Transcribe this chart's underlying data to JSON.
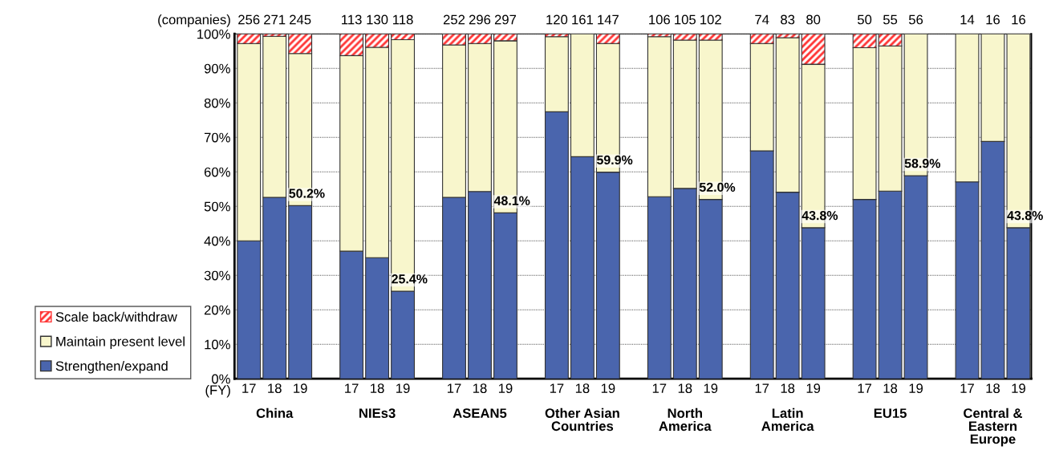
{
  "chart_data": {
    "type": "bar",
    "stacked": true,
    "categories": [
      "17",
      "18",
      "19",
      "17",
      "18",
      "19",
      "17",
      "18",
      "19",
      "17",
      "18",
      "19",
      "17",
      "18",
      "19",
      "17",
      "18",
      "19",
      "17",
      "18",
      "19",
      "17",
      "18",
      "19"
    ],
    "series": [
      {
        "name": "Strengthen/expand",
        "color": "#4a65ad",
        "values": [
          40.0,
          52.6,
          50.2,
          37.0,
          35.1,
          25.4,
          52.6,
          54.3,
          48.1,
          77.4,
          64.4,
          59.9,
          52.8,
          55.2,
          52.0,
          66.1,
          54.1,
          43.8,
          52.0,
          54.4,
          58.9,
          57.1,
          68.8,
          43.8
        ],
        "value_labels": [
          null,
          null,
          "50.2%",
          null,
          null,
          "25.4%",
          null,
          null,
          "48.1%",
          null,
          null,
          "59.9%",
          null,
          null,
          "52.0%",
          null,
          null,
          "43.8%",
          null,
          null,
          "58.9%",
          null,
          null,
          "43.8%"
        ]
      },
      {
        "name": "Maintain present level",
        "color": "#f8f6cc",
        "values": [
          57.2,
          46.7,
          44.1,
          56.7,
          61.0,
          72.9,
          44.2,
          42.9,
          49.9,
          21.8,
          35.6,
          37.3,
          46.4,
          43.0,
          46.2,
          31.1,
          44.8,
          47.4,
          44.0,
          42.1,
          41.1,
          42.9,
          31.2,
          56.2
        ]
      },
      {
        "name": "Scale back/withdraw",
        "color": "#ff3333",
        "values": [
          2.8,
          0.7,
          5.7,
          6.3,
          3.9,
          1.7,
          3.2,
          2.8,
          2.0,
          0.8,
          0,
          2.8,
          0.8,
          1.8,
          1.8,
          2.8,
          1.1,
          8.8,
          4.0,
          3.5,
          0,
          0,
          0,
          0
        ]
      }
    ],
    "ylim": [
      0,
      100
    ],
    "yticks": [
      {
        "value": 0,
        "label": "0%"
      },
      {
        "value": 10,
        "label": "10%"
      },
      {
        "value": 20,
        "label": "20%"
      },
      {
        "value": 30,
        "label": "30%"
      },
      {
        "value": 40,
        "label": "40%"
      },
      {
        "value": 50,
        "label": "50%"
      },
      {
        "value": 60,
        "label": "60%"
      },
      {
        "value": 70,
        "label": "70%"
      },
      {
        "value": 80,
        "label": "80%"
      },
      {
        "value": 90,
        "label": "90%"
      },
      {
        "value": 100,
        "label": "100%"
      }
    ],
    "grid": "y",
    "legend": "left",
    "annotations": [
      "(companies)",
      "(FY)",
      "256",
      "271",
      "245",
      "113",
      "130",
      "118",
      "252",
      "296",
      "297",
      "120",
      "161",
      "147",
      "106",
      "105",
      "102",
      "74",
      "83",
      "80",
      "50",
      "55",
      "56",
      "14",
      "16",
      "16",
      "China",
      "NIEs3",
      "ASEAN5",
      "Other Asian\nCountries",
      "North\nAmerica",
      "Latin\nAmerica",
      "EU15",
      "Central &\nEastern\nEurope"
    ]
  }
}
